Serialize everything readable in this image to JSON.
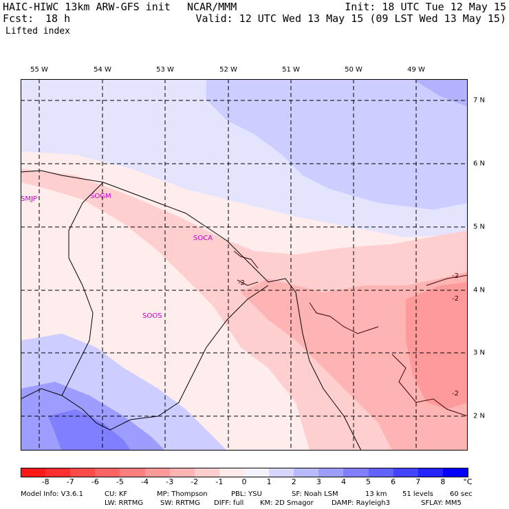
{
  "header": {
    "model": "HAIC-HIWC 13km ARW-GFS init",
    "org": "NCAR/MMM",
    "fcst_label": "Fcst:",
    "fcst_value": "18 h",
    "field": "Lifted index",
    "init": "Init: 18 UTC Tue 12 May 15",
    "valid": "Valid: 12 UTC Wed 13 May 15 (09 LST Wed 13 May 15)"
  },
  "lon_labels": [
    "55 W",
    "54 W",
    "53 W",
    "52 W",
    "51 W",
    "50 W",
    "49 W"
  ],
  "lat_labels": [
    "7 N",
    "6 N",
    "5 N",
    "4 N",
    "3 N",
    "2 N"
  ],
  "stations": [
    "SMJP",
    "SOGM",
    "SOCA",
    "SOOS"
  ],
  "contour_labels": [
    "-2",
    "-2",
    "-2",
    "-2"
  ],
  "colorbar": {
    "unit": "°C",
    "ticks": [
      "-8",
      "-7",
      "-6",
      "-5",
      "-4",
      "-3",
      "-2",
      "-1",
      "0",
      "1",
      "2",
      "3",
      "4",
      "5",
      "6",
      "7",
      "8"
    ],
    "colors": [
      "#ff1a1a",
      "#ff2f2f",
      "#ff4a4a",
      "#ff6464",
      "#ff7e7e",
      "#ff9a9a",
      "#ffb4b4",
      "#ffcfcf",
      "#ffe9e9",
      "#f2f2ff",
      "#d6d6ff",
      "#b9b9ff",
      "#9d9dff",
      "#7f7fff",
      "#6262ff",
      "#4444ff",
      "#2424ff",
      "#0000ff"
    ]
  },
  "footer": {
    "line1": [
      "Model Info: V3.6.1",
      "CU: KF",
      "MP: Thompson",
      "PBL: YSU",
      "SF: Noah LSM",
      "13 km",
      "51 levels",
      "60 sec"
    ],
    "line2": [
      "LW: RRTMG",
      "SW: RRTMG",
      "DIFF: full",
      "KM: 2D Smagor",
      "DAMP: Rayleigh3",
      "SFLAY: MM5"
    ]
  }
}
